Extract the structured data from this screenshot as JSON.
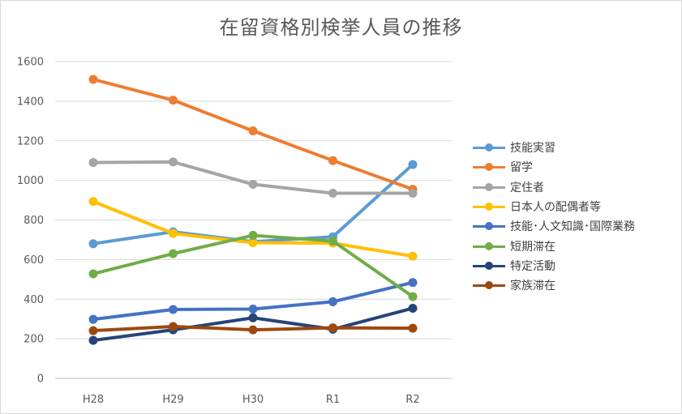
{
  "chart_data": {
    "type": "line",
    "title": "在留資格別検挙人員の推移",
    "xlabel": "",
    "ylabel": "",
    "categories": [
      "H28",
      "H29",
      "H30",
      "R1",
      "R2"
    ],
    "ylim": [
      0,
      1600
    ],
    "yticks": [
      0,
      200,
      400,
      600,
      800,
      1000,
      1200,
      1400,
      1600
    ],
    "grid": true,
    "legend_position": "right",
    "series": [
      {
        "name": "技能実習",
        "color": "#5B9BD5",
        "values": [
          680,
          740,
          690,
          715,
          1080
        ]
      },
      {
        "name": "留学",
        "color": "#ED7D31",
        "values": [
          1510,
          1405,
          1250,
          1100,
          955
        ]
      },
      {
        "name": "定住者",
        "color": "#A5A5A5",
        "values": [
          1090,
          1093,
          980,
          935,
          935
        ]
      },
      {
        "name": "日本人の配偶者等",
        "color": "#FFC000",
        "values": [
          893,
          732,
          685,
          683,
          617
        ]
      },
      {
        "name": "技能･人文知識･国際業務",
        "color": "#4472C4",
        "values": [
          298,
          348,
          350,
          387,
          484
        ]
      },
      {
        "name": "短期滞在",
        "color": "#70AD47",
        "values": [
          528,
          630,
          722,
          693,
          413
        ]
      },
      {
        "name": "特定活動",
        "color": "#264478",
        "values": [
          192,
          245,
          306,
          248,
          354
        ]
      },
      {
        "name": "家族滞在",
        "color": "#9E480E",
        "values": [
          241,
          262,
          245,
          255,
          253
        ]
      }
    ]
  }
}
